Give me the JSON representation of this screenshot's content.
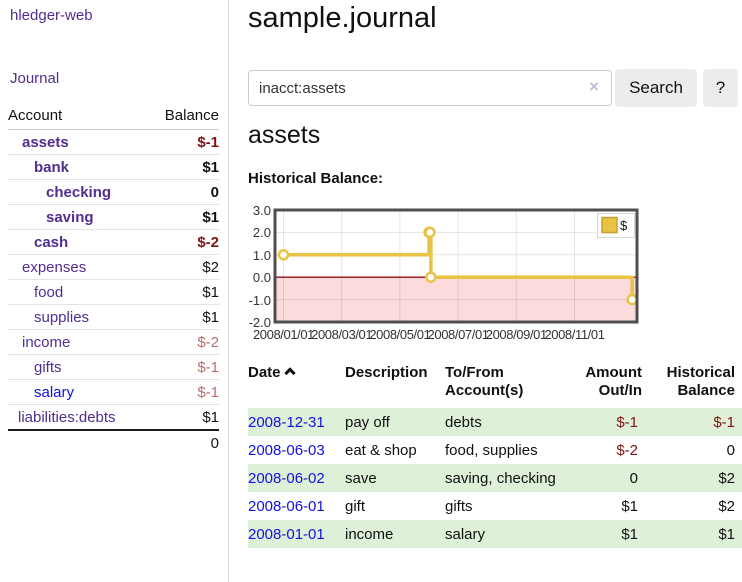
{
  "app": {
    "brand": "hledger-web",
    "nav_journal": "Journal"
  },
  "colors": {
    "link_purple": "#512e90",
    "link_blue": "#1212dd",
    "negative_strong": "#801414",
    "negative_soft": "#b96f6f",
    "row_green": "#dff0d8",
    "chart_line": "#e9c344",
    "chart_negative_fill": "#fbdbdb",
    "zero_line": "#8b0f0f"
  },
  "sidebar": {
    "header": {
      "account": "Account",
      "balance": "Balance"
    },
    "accounts": [
      {
        "name": "assets",
        "level": 1,
        "bold": true,
        "balance": "$-1",
        "balance_style": "neg-strong"
      },
      {
        "name": "bank",
        "level": 2,
        "bold": true,
        "balance": "$1",
        "balance_style": "normal"
      },
      {
        "name": "checking",
        "level": 3,
        "bold": true,
        "balance": "0",
        "balance_style": "normal"
      },
      {
        "name": "saving",
        "level": 3,
        "bold": true,
        "balance": "$1",
        "balance_style": "normal"
      },
      {
        "name": "cash",
        "level": 2,
        "bold": true,
        "balance": "$-2",
        "balance_style": "neg-strong"
      },
      {
        "name": "expenses",
        "level": 1,
        "bold": false,
        "balance": "$2",
        "balance_style": "normal"
      },
      {
        "name": "food",
        "level": 2,
        "bold": false,
        "balance": "$1",
        "balance_style": "normal"
      },
      {
        "name": "supplies",
        "level": 2,
        "bold": false,
        "balance": "$1",
        "balance_style": "normal"
      },
      {
        "name": "income",
        "level": 1,
        "bold": false,
        "balance": "$-2",
        "balance_style": "neg-soft"
      },
      {
        "name": "gifts",
        "level": 2,
        "bold": false,
        "balance": "$-1",
        "balance_style": "neg-soft"
      },
      {
        "name": "salary",
        "level": 2,
        "bold": false,
        "balance": "$-1",
        "balance_style": "neg-soft",
        "link_color": "blue"
      },
      {
        "name": "liabilities:debts",
        "level": 0,
        "bold": false,
        "balance": "$1",
        "balance_style": "normal"
      }
    ],
    "total": "0"
  },
  "header": {
    "title": "sample.journal"
  },
  "search": {
    "value": "inacct:assets",
    "clear_icon": "×",
    "button": "Search",
    "help_button": "?"
  },
  "account_page": {
    "heading": "assets",
    "chart_label": "Historical Balance:"
  },
  "chart_data": {
    "type": "line",
    "step": true,
    "title": "Historical Balance of assets",
    "legend": {
      "position": "top-right",
      "entries": [
        "$"
      ]
    },
    "ylim": [
      -2,
      3
    ],
    "y_ticks": [
      3.0,
      2.0,
      1.0,
      0.0,
      -1.0,
      -2.0
    ],
    "y_tick_labels": [
      "3.0",
      "2.0",
      "1.0",
      "0.0",
      "-1.0",
      "-2.0"
    ],
    "x_tick_labels": [
      "2008/01/01",
      "2008/03/01",
      "2008/05/01",
      "2008/07/01",
      "2008/09/01",
      "2008/11/01"
    ],
    "series": [
      {
        "name": "$",
        "points": [
          {
            "date": "2008-01-01",
            "value": 1
          },
          {
            "date": "2008-06-01",
            "value": 2
          },
          {
            "date": "2008-06-02",
            "value": 2
          },
          {
            "date": "2008-06-03",
            "value": 0
          },
          {
            "date": "2008-12-31",
            "value": -1
          }
        ]
      }
    ],
    "annotations": {
      "negative_region_shaded": true,
      "zero_line": true
    }
  },
  "transactions": {
    "columns": [
      {
        "label": "Date",
        "sort": "asc",
        "align": "left"
      },
      {
        "label": "Description",
        "align": "left"
      },
      {
        "label": "To/From Account(s)",
        "align": "left"
      },
      {
        "label": "Amount Out/In",
        "align": "right"
      },
      {
        "label": "Historical Balance",
        "align": "right"
      }
    ],
    "rows": [
      {
        "date": "2008-12-31",
        "description": "pay off",
        "accounts": "debts",
        "amount": "$-1",
        "amount_neg": true,
        "balance": "$-1",
        "balance_neg": true,
        "green": true
      },
      {
        "date": "2008-06-03",
        "description": "eat & shop",
        "accounts": "food, supplies",
        "amount": "$-2",
        "amount_neg": true,
        "balance": "0",
        "balance_neg": false,
        "green": false
      },
      {
        "date": "2008-06-02",
        "description": "save",
        "accounts": "saving, checking",
        "amount": "0",
        "amount_neg": false,
        "balance": "$2",
        "balance_neg": false,
        "green": true
      },
      {
        "date": "2008-06-01",
        "description": "gift",
        "accounts": "gifts",
        "amount": "$1",
        "amount_neg": false,
        "balance": "$2",
        "balance_neg": false,
        "green": false
      },
      {
        "date": "2008-01-01",
        "description": "income",
        "accounts": "salary",
        "amount": "$1",
        "amount_neg": false,
        "balance": "$1",
        "balance_neg": false,
        "green": true
      }
    ]
  }
}
